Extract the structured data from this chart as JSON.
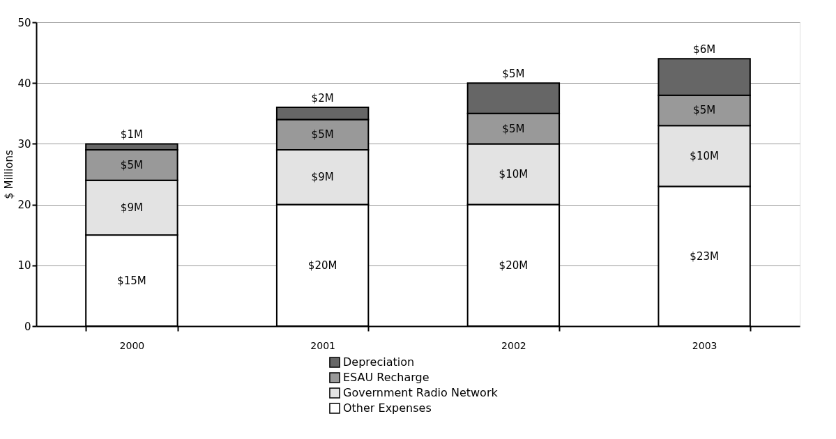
{
  "chart_data": {
    "type": "bar",
    "stacked": true,
    "ylabel": "$ Millions",
    "categories": [
      "2000",
      "2001",
      "2002",
      "2003"
    ],
    "series": [
      {
        "name": "Other Expenses",
        "color": "#ffffff",
        "values": [
          15,
          20,
          20,
          23
        ],
        "value_labels": [
          "$15M",
          "$20M",
          "$20M",
          "$23M"
        ]
      },
      {
        "name": "Government Radio Network",
        "color": "#e3e3e3",
        "values": [
          9,
          9,
          10,
          10
        ],
        "value_labels": [
          "$9M",
          "$9M",
          "$10M",
          "$10M"
        ]
      },
      {
        "name": "ESAU Recharge",
        "color": "#999999",
        "values": [
          5,
          5,
          5,
          5
        ],
        "value_labels": [
          "$5M",
          "$5M",
          "$5M",
          "$5M"
        ]
      },
      {
        "name": "Depreciation",
        "color": "#666666",
        "values": [
          1,
          2,
          5,
          6
        ],
        "value_labels": [
          "$1M",
          "$2M",
          "$5M",
          "$6M"
        ]
      }
    ],
    "ylim": [
      0,
      50
    ],
    "yticks": [
      0,
      10,
      20,
      30,
      40,
      50
    ],
    "grid": "y",
    "legend": "bottom"
  }
}
